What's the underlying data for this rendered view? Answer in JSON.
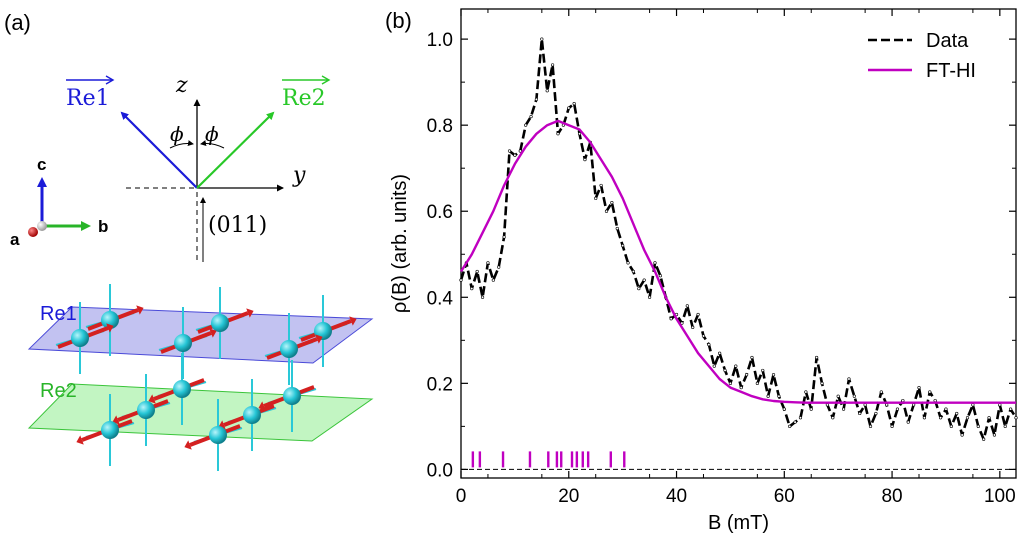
{
  "panel_a": {
    "label": "(a)",
    "vectors": {
      "re1": "Re1",
      "re2": "Re2"
    },
    "axes": {
      "z": "z",
      "y": "y",
      "c": "c",
      "b": "b",
      "a": "a"
    },
    "angle_symbol": "ϕ",
    "direction_label": "(011)",
    "layer_labels": {
      "top": "Re1",
      "bottom": "Re2"
    },
    "colors": {
      "re1": "#1b1bd8",
      "re2": "#28c828",
      "plane1": "#9a9ae8",
      "plane2": "#9aee9a",
      "atom": "#26c6d6",
      "spin": "#d42020"
    }
  },
  "panel_b": {
    "label": "(b)",
    "legend": {
      "data": "Data",
      "fit": "FT-HI"
    }
  },
  "chart_data": {
    "type": "line",
    "title": "",
    "xlabel": "B (mT)",
    "ylabel": "ρ(B) (arb. units)",
    "xlim": [
      0,
      103
    ],
    "ylim": [
      -0.02,
      1.07
    ],
    "xticks": [
      0,
      20,
      40,
      60,
      80,
      100
    ],
    "yticks": [
      0.0,
      0.2,
      0.4,
      0.6,
      0.8,
      1.0
    ],
    "xtick_labels": [
      "0",
      "20",
      "40",
      "60",
      "80",
      "100"
    ],
    "ytick_labels": [
      "0.0",
      "0.2",
      "0.4",
      "0.6",
      "0.8",
      "1.0"
    ],
    "series": [
      {
        "name": "Data",
        "style": "dashed",
        "color": "#000000",
        "x": [
          0,
          1,
          2,
          3,
          4,
          5,
          6,
          7,
          8,
          9,
          10,
          11,
          12,
          13,
          14,
          15,
          16,
          17,
          18,
          19,
          20,
          21,
          22,
          23,
          24,
          25,
          26,
          27,
          28,
          29,
          30,
          31,
          32,
          33,
          34,
          35,
          36,
          37,
          38,
          39,
          40,
          41,
          42,
          43,
          44,
          45,
          46,
          47,
          48,
          49,
          50,
          51,
          52,
          53,
          54,
          55,
          56,
          57,
          58,
          59,
          60,
          61,
          62,
          63,
          64,
          65,
          66,
          67,
          68,
          69,
          70,
          71,
          72,
          73,
          74,
          75,
          76,
          77,
          78,
          79,
          80,
          81,
          82,
          83,
          84,
          85,
          86,
          87,
          88,
          89,
          90,
          91,
          92,
          93,
          94,
          95,
          96,
          97,
          98,
          99,
          100,
          101,
          102,
          103
        ],
        "values": [
          0.44,
          0.48,
          0.42,
          0.46,
          0.4,
          0.48,
          0.44,
          0.47,
          0.54,
          0.74,
          0.73,
          0.74,
          0.8,
          0.82,
          0.86,
          1.0,
          0.88,
          0.94,
          0.78,
          0.8,
          0.84,
          0.85,
          0.78,
          0.72,
          0.76,
          0.63,
          0.66,
          0.6,
          0.62,
          0.56,
          0.52,
          0.48,
          0.46,
          0.42,
          0.44,
          0.4,
          0.48,
          0.45,
          0.4,
          0.35,
          0.36,
          0.34,
          0.38,
          0.33,
          0.36,
          0.31,
          0.29,
          0.24,
          0.27,
          0.23,
          0.2,
          0.24,
          0.19,
          0.22,
          0.26,
          0.2,
          0.23,
          0.17,
          0.22,
          0.17,
          0.14,
          0.1,
          0.11,
          0.12,
          0.18,
          0.14,
          0.26,
          0.2,
          0.15,
          0.12,
          0.17,
          0.14,
          0.21,
          0.17,
          0.13,
          0.15,
          0.1,
          0.13,
          0.18,
          0.15,
          0.1,
          0.14,
          0.16,
          0.11,
          0.15,
          0.19,
          0.12,
          0.18,
          0.16,
          0.12,
          0.14,
          0.1,
          0.13,
          0.08,
          0.12,
          0.15,
          0.1,
          0.07,
          0.12,
          0.08,
          0.15,
          0.1,
          0.14,
          0.12
        ]
      },
      {
        "name": "FT-HI",
        "style": "solid",
        "color": "#c000c0",
        "description": "Gaussian fit: y = 0.155 + 0.653*exp(-((B-18.5)^2)/(2*14^2))",
        "x": [
          0,
          2,
          4,
          6,
          8,
          10,
          12,
          14,
          16,
          18,
          20,
          22,
          24,
          26,
          28,
          30,
          32,
          34,
          36,
          38,
          40,
          42,
          44,
          46,
          48,
          50,
          52,
          54,
          56,
          58,
          60,
          62,
          64,
          66,
          68,
          70,
          75,
          80,
          85,
          90,
          95,
          100,
          103
        ],
        "values": [
          0.46,
          0.5,
          0.55,
          0.6,
          0.66,
          0.71,
          0.75,
          0.78,
          0.8,
          0.81,
          0.8,
          0.79,
          0.76,
          0.72,
          0.68,
          0.63,
          0.57,
          0.51,
          0.46,
          0.4,
          0.35,
          0.31,
          0.27,
          0.24,
          0.21,
          0.19,
          0.18,
          0.17,
          0.163,
          0.159,
          0.157,
          0.156,
          0.155,
          0.155,
          0.155,
          0.155,
          0.155,
          0.155,
          0.155,
          0.155,
          0.155,
          0.155,
          0.155
        ]
      }
    ],
    "rug": {
      "color": "#c000c0",
      "x": [
        2.2,
        3.5,
        7.8,
        12.8,
        16.2,
        17.8,
        18.6,
        20.6,
        21.5,
        22.6,
        23.6,
        27.8,
        30.3
      ]
    },
    "reference_line": {
      "y": 0.0,
      "style": "dashed"
    }
  }
}
